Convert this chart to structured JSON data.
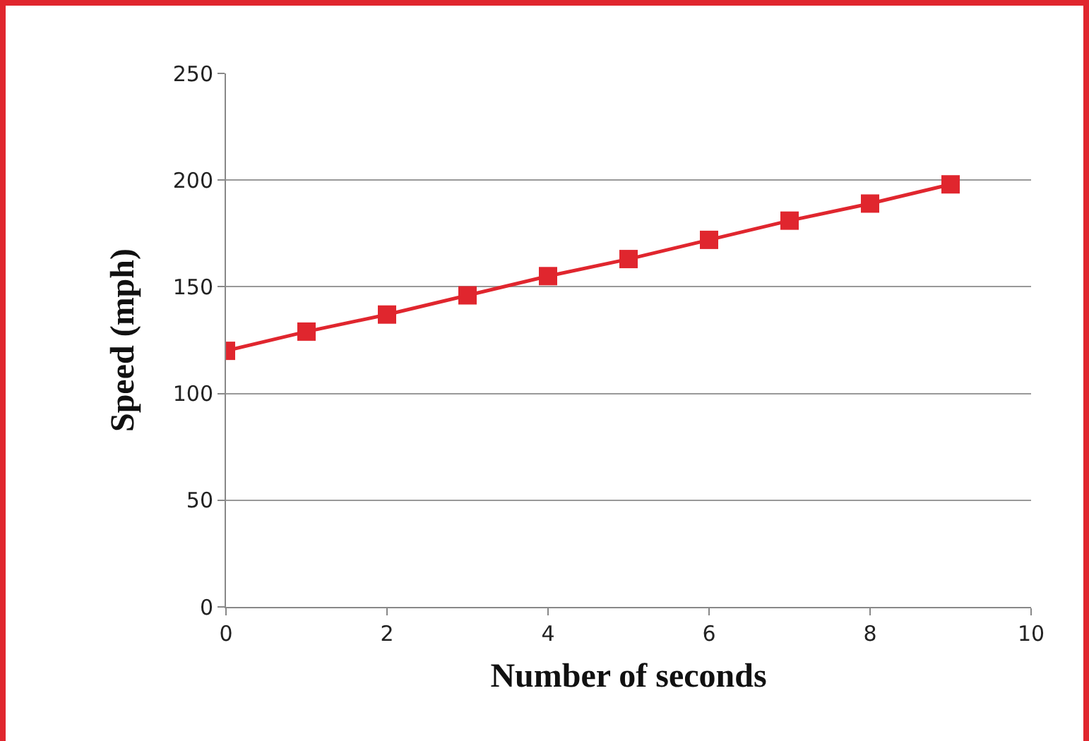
{
  "chart_data": {
    "type": "line",
    "xlabel": "Number of seconds",
    "ylabel": "Speed (mph)",
    "x": [
      0,
      1,
      2,
      3,
      4,
      5,
      6,
      7,
      8,
      9
    ],
    "series": [
      {
        "color": "#e0262e",
        "values": [
          120,
          129,
          137,
          146,
          155,
          163,
          172,
          181,
          189,
          198
        ]
      }
    ],
    "xlim": [
      0,
      10
    ],
    "xticks": [
      0,
      2,
      4,
      6,
      8,
      10
    ],
    "ylim": [
      0,
      250
    ],
    "yticks": [
      0,
      50,
      100,
      150,
      200,
      250
    ],
    "grid": "y",
    "marker": "square",
    "line_style": "solid"
  }
}
